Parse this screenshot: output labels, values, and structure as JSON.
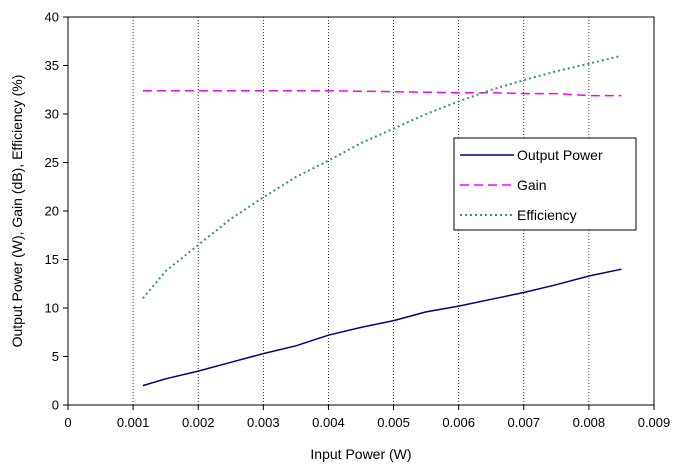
{
  "chart_data": {
    "type": "line",
    "xlabel": "Input Power (W)",
    "ylabel": "Output Power (W), Gain (dB), Efficiency (%)",
    "xlim": [
      0,
      0.009
    ],
    "ylim": [
      0,
      40
    ],
    "x_ticks": [
      "0",
      "0.001",
      "0.002",
      "0.003",
      "0.004",
      "0.005",
      "0.006",
      "0.007",
      "0.008",
      "0.009"
    ],
    "y_ticks": [
      "0",
      "5",
      "10",
      "15",
      "20",
      "25",
      "30",
      "35",
      "40"
    ],
    "grid": "vertical dotted",
    "legend_position": "right",
    "series": [
      {
        "name": "Output Power",
        "color": "#000080",
        "style": "solid",
        "x": [
          0.00115,
          0.0015,
          0.002,
          0.0025,
          0.003,
          0.0035,
          0.004,
          0.0045,
          0.005,
          0.0055,
          0.006,
          0.0065,
          0.007,
          0.0075,
          0.008,
          0.0085
        ],
        "y": [
          2.0,
          2.7,
          3.5,
          4.4,
          5.3,
          6.1,
          7.2,
          8.0,
          8.7,
          9.6,
          10.2,
          10.9,
          11.6,
          12.4,
          13.3,
          14.0
        ]
      },
      {
        "name": "Gain",
        "color": "#ff00ff",
        "style": "dashed",
        "x": [
          0.00115,
          0.002,
          0.003,
          0.004,
          0.005,
          0.006,
          0.0065,
          0.007,
          0.0075,
          0.008,
          0.0085
        ],
        "y": [
          32.4,
          32.4,
          32.4,
          32.4,
          32.3,
          32.2,
          32.2,
          32.1,
          32.1,
          31.9,
          31.9
        ]
      },
      {
        "name": "Efficiency",
        "color": "#339966",
        "style": "dotted",
        "x": [
          0.00115,
          0.0015,
          0.002,
          0.0025,
          0.003,
          0.0035,
          0.004,
          0.0045,
          0.005,
          0.0055,
          0.006,
          0.0065,
          0.007,
          0.0075,
          0.008,
          0.0085
        ],
        "y": [
          11.0,
          13.8,
          16.5,
          19.2,
          21.4,
          23.5,
          25.2,
          27.0,
          28.5,
          30.0,
          31.3,
          32.5,
          33.5,
          34.4,
          35.2,
          36.0
        ]
      }
    ]
  }
}
